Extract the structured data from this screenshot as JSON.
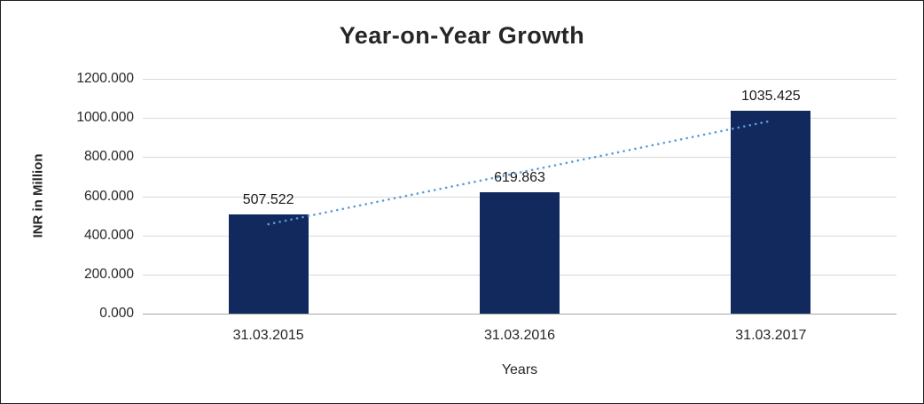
{
  "chart_data": {
    "type": "bar",
    "title": "Year-on-Year Growth",
    "xlabel": "Years",
    "ylabel": "INR in Million",
    "categories": [
      "31.03.2015",
      "31.03.2016",
      "31.03.2017"
    ],
    "values": [
      507.522,
      619.863,
      1035.425
    ],
    "data_labels": [
      "507.522",
      "619.863",
      "1035.425"
    ],
    "ylim": [
      0,
      1200
    ],
    "yticks": [
      0,
      200,
      400,
      600,
      800,
      1000,
      1200
    ],
    "ytick_labels": [
      "0.000",
      "200.000",
      "400.000",
      "600.000",
      "800.000",
      "1000.000",
      "1200.000"
    ],
    "grid": true,
    "legend": "none",
    "bar_color": "#12295e",
    "grid_color": "#d9d9d9",
    "trendline": {
      "type": "linear",
      "style": "dotted",
      "color": "#5b9bd5",
      "start_value": 457,
      "end_value": 985
    }
  }
}
